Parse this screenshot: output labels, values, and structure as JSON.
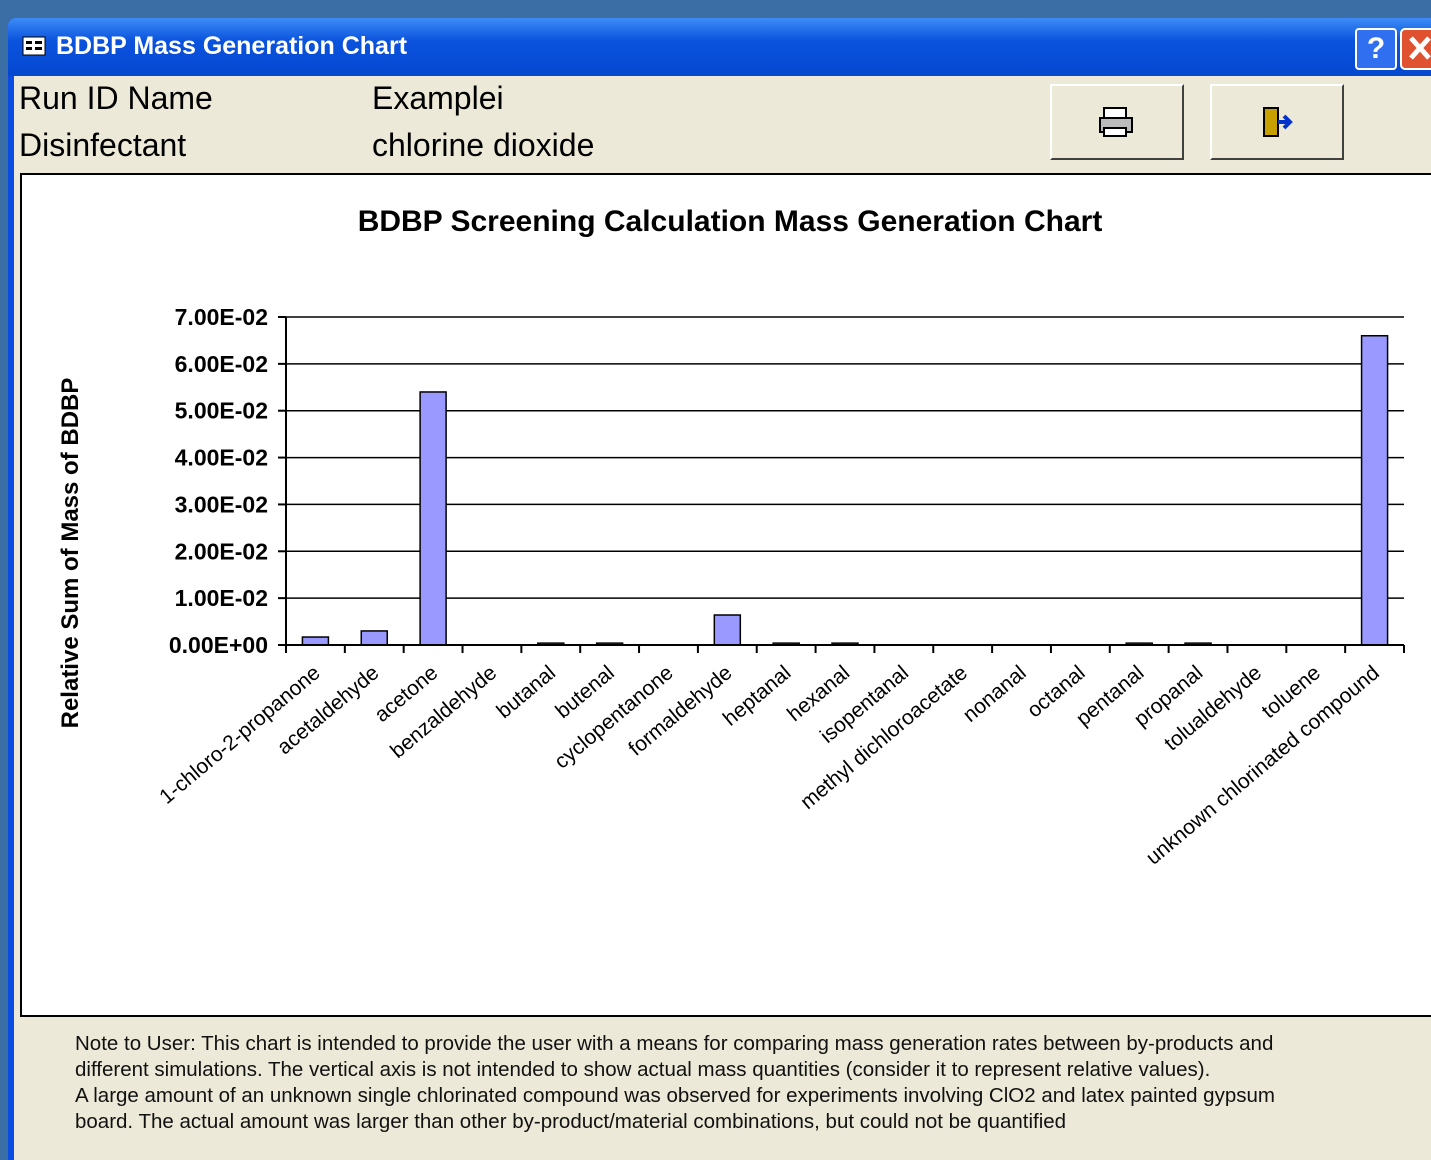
{
  "window": {
    "title": "BDBP Mass Generation Chart",
    "help_button": "?"
  },
  "header": {
    "rows": [
      [
        "Run ID Name",
        "Examplei"
      ],
      [
        "Disinfectant",
        "chlorine dioxide"
      ]
    ]
  },
  "chart_data": {
    "type": "bar",
    "title": "BDBP Screening Calculation Mass Generation Chart",
    "y_label": "Relative Sum of Mass of BDBP",
    "categories": [
      "1-chloro-2-propanone",
      "acetaldehyde",
      "acetone",
      "benzaldehyde",
      "butanal",
      "butenal",
      "cyclopentanone",
      "formaldehyde",
      "heptanal",
      "hexanal",
      "isopentanal",
      "methyl dichloroacetate",
      "nonanal",
      "octanal",
      "pentanal",
      "propanal",
      "tolualdehyde",
      "toluene",
      "unknown chlorinated compound"
    ],
    "values": [
      0.0017,
      0.003,
      0.054,
      0,
      0.0004,
      0.0004,
      0,
      0.0064,
      0.0004,
      0.0004,
      0,
      0,
      0,
      0,
      0.0004,
      0.0004,
      0,
      0,
      0.066
    ],
    "color": "#9999ff",
    "ylim": [
      0,
      0.07
    ],
    "yticks": [
      {
        "value": 0,
        "label": "0.00E+00"
      },
      {
        "value": 0.01,
        "label": "1.00E-02"
      },
      {
        "value": 0.02,
        "label": "2.00E-02"
      },
      {
        "value": 0.03,
        "label": "3.00E-02"
      },
      {
        "value": 0.04,
        "label": "4.00E-02"
      },
      {
        "value": 0.05,
        "label": "5.00E-02"
      },
      {
        "value": 0.06,
        "label": "6.00E-02"
      },
      {
        "value": 0.07,
        "label": "7.00E-02"
      }
    ],
    "grid": true
  },
  "note": [
    "Note to User: This chart is intended to provide the user with a means for comparing mass generation rates between by-products and different simulations.  The vertical axis is not intended to show actual mass quantities (consider it to represent relative values).",
    "A large amount of an unknown single chlorinated compound was observed for experiments involving ClO2 and latex painted gypsum board.  The actual amount was larger than other by-product/material combinations, but could not be quantified"
  ]
}
